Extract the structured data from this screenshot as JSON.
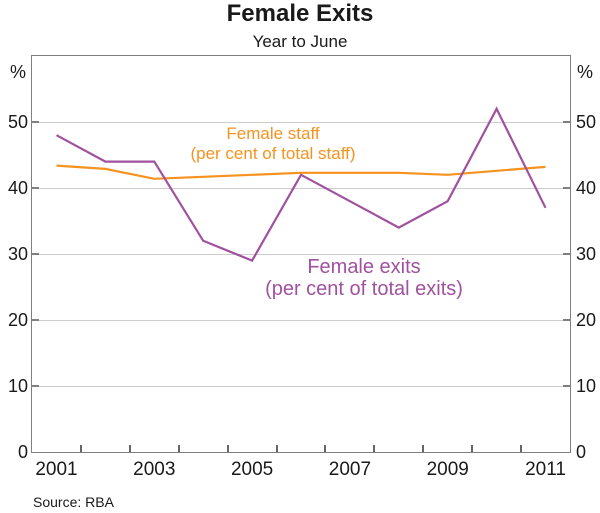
{
  "title": "Female Exits",
  "subtitle": "Year to June",
  "source": "Source: RBA",
  "axis": {
    "left_unit": "%",
    "right_unit": "%",
    "yticks": [
      0,
      10,
      20,
      30,
      40,
      50
    ],
    "xtick_labels": [
      2001,
      2003,
      2005,
      2007,
      2009,
      2011
    ],
    "xminor_ticks": [
      2001.5,
      2002.5,
      2003.5,
      2004.5,
      2005.5,
      2006.5,
      2007.5,
      2008.5,
      2009.5,
      2010.5
    ],
    "frame_color": "#7f7f7f",
    "gridline_color": "#cdcdcd"
  },
  "chart_data": {
    "type": "line",
    "title": "Female Exits",
    "subtitle": "Year to June",
    "x": [
      2001,
      2002,
      2003,
      2004,
      2005,
      2006,
      2007,
      2008,
      2009,
      2010,
      2011
    ],
    "xlim": [
      2000.5,
      2011.5
    ],
    "ylim": [
      0,
      60
    ],
    "grid": true,
    "legend_position": "annotations-inside-plot",
    "ylabel_left": "%",
    "ylabel_right": "%",
    "series": [
      {
        "name": "Female staff",
        "label_line1": "Female staff",
        "label_line2": "(per cent of total staff)",
        "color": "#F6921E",
        "values": [
          43.4,
          42.9,
          41.4,
          41.7,
          42.0,
          42.3,
          42.3,
          42.3,
          42.0,
          42.6,
          43.2
        ]
      },
      {
        "name": "Female exits",
        "label_line1": "Female exits",
        "label_line2": "(per cent of total exits)",
        "color": "#A0519F",
        "values": [
          48,
          44,
          44,
          32,
          29,
          42,
          38,
          34,
          38,
          52,
          37
        ]
      }
    ],
    "source": "Source: RBA"
  }
}
